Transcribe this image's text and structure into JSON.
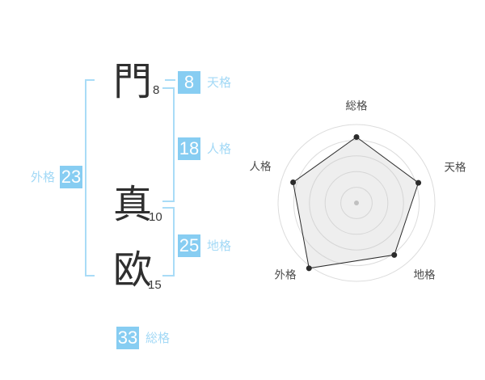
{
  "name_diagram": {
    "characters": [
      {
        "char": "門",
        "strokes": "8"
      },
      {
        "char": "真",
        "strokes": "10"
      },
      {
        "char": "欧",
        "strokes": "15"
      }
    ],
    "badges": {
      "tenkaku": {
        "value": "8",
        "label": "天格"
      },
      "jinkaku": {
        "value": "18",
        "label": "人格"
      },
      "chikaku": {
        "value": "25",
        "label": "地格"
      },
      "gaikaku": {
        "value": "23",
        "label": "外格"
      },
      "soukaku": {
        "value": "33",
        "label": "総格"
      }
    },
    "colors": {
      "badge_blue": "#87CDF2",
      "label_blue": "#A3D9F6",
      "bracket_blue": "#A9DCF7",
      "kanji": "#2f2f2f"
    }
  },
  "chart_data": {
    "type": "radar",
    "axes": [
      "総格",
      "天格",
      "地格",
      "外格",
      "人格"
    ],
    "values_fraction_of_outer_ring": [
      0.84,
      0.83,
      0.82,
      1.03,
      0.85
    ],
    "rings": 5,
    "angles_deg": [
      -90,
      -18,
      54,
      126,
      198
    ],
    "grid": "circular",
    "legend": "none",
    "ring_color": "#dcdcdc",
    "polygon_stroke": "#2b2b2b",
    "polygon_fill": "#c8c8c8",
    "polygon_fill_opacity": 0.3,
    "dot_color": "#2b2b2b",
    "center_dot_color": "#c0c0c0",
    "label_color": "#4a4a4a"
  }
}
